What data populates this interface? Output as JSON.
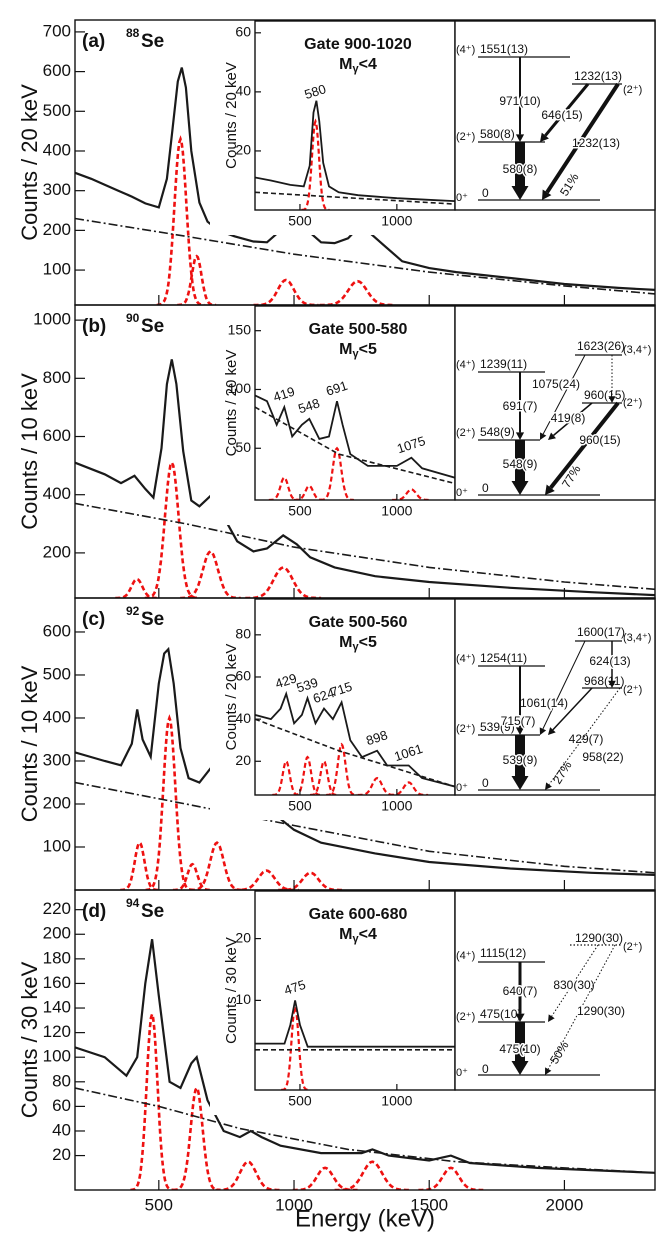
{
  "chart_data": [
    {
      "type": "line",
      "label": "(a)",
      "mass": "88",
      "element": "Se",
      "ylabel": "Counts / 20 keV",
      "xlim": [
        190,
        2335
      ],
      "xticks": [
        500,
        1000,
        1500,
        2000
      ],
      "ylim": [
        12,
        730
      ],
      "yticks": [
        100,
        200,
        300,
        400,
        500,
        600,
        700
      ],
      "series": [
        {
          "style": "solid",
          "color": "#1a1a1a",
          "x": [
            190,
            250,
            300,
            350,
            400,
            450,
            500,
            530,
            550,
            570,
            585,
            600,
            620,
            650,
            680,
            720,
            780,
            850,
            900,
            950,
            975,
            1000,
            1050,
            1100,
            1150,
            1200,
            1235,
            1270,
            1320,
            1400,
            1500,
            1600,
            1800,
            2000,
            2200,
            2335
          ],
          "values": [
            345,
            330,
            315,
            300,
            285,
            268,
            258,
            330,
            450,
            575,
            610,
            560,
            400,
            270,
            222,
            200,
            185,
            172,
            170,
            200,
            232,
            230,
            200,
            170,
            168,
            180,
            205,
            200,
            170,
            122,
            105,
            95,
            80,
            65,
            55,
            50
          ]
        },
        {
          "style": "dash-dot",
          "color": "#1a1a1a",
          "x": [
            190,
            600,
            1000,
            1500,
            2000,
            2335
          ],
          "values": [
            230,
            185,
            140,
            95,
            60,
            40
          ]
        }
      ],
      "peaks": {
        "color": "#ee1111",
        "center": [
          580,
          640,
          970,
          1235
        ],
        "height": [
          430,
          135,
          75,
          72
        ],
        "width": [
          22,
          18,
          30,
          35
        ]
      },
      "inset": {
        "type": "line",
        "title": "Gate 900-1020",
        "multiplicity": [
          "M",
          "γ",
          "<4"
        ],
        "ylabel": "Counts / 20 keV",
        "xlim": [
          268,
          1300
        ],
        "xticks": [
          500,
          1000
        ],
        "ylim": [
          0,
          64
        ],
        "yticks": [
          20,
          40,
          60
        ],
        "series": [
          {
            "style": "solid",
            "color": "#1a1a1a",
            "x": [
              268,
              350,
              450,
              520,
              550,
              570,
              585,
              600,
              620,
              650,
              700,
              800,
              1000,
              1150,
              1300
            ],
            "values": [
              11,
              10,
              8.5,
              8,
              15,
              33,
              37,
              30,
              16,
              8,
              6,
              5,
              4,
              3.5,
              3
            ]
          },
          {
            "style": "dashed",
            "color": "#1a1a1a",
            "x": [
              268,
              1300
            ],
            "values": [
              6,
              2
            ]
          }
        ],
        "peaks": {
          "color": "#ee1111",
          "center": [
            580
          ],
          "height": [
            30
          ],
          "width": [
            18
          ]
        },
        "annotations": [
          "580"
        ]
      },
      "level_scheme": {
        "levels": [
          {
            "spin": "(4⁺)",
            "energy": "1551(13)"
          },
          {
            "spin": "(2⁺)",
            "energy": "580(8)"
          },
          {
            "spin": "0⁺",
            "energy": "0"
          },
          {
            "spin": "(2⁺)",
            "energy": "1232(13)"
          }
        ],
        "transitions": [
          "971(10)",
          "646(15)",
          "580(8)",
          "1232(13)"
        ],
        "branch": "51%"
      }
    },
    {
      "type": "line",
      "label": "(b)",
      "mass": "90",
      "element": "Se",
      "ylabel": "Counts / 10 keV",
      "xlim": [
        190,
        2335
      ],
      "xticks": [
        500,
        1000,
        1500,
        2000
      ],
      "ylim": [
        45,
        1052
      ],
      "yticks": [
        200,
        400,
        600,
        800,
        1000
      ],
      "series": [
        {
          "style": "solid",
          "color": "#1a1a1a",
          "x": [
            190,
            300,
            360,
            410,
            450,
            480,
            510,
            530,
            548,
            565,
            590,
            620,
            650,
            690,
            730,
            790,
            850,
            900,
            960,
            1010,
            1060,
            1150,
            1300,
            1500,
            1800,
            2100,
            2335
          ],
          "values": [
            510,
            470,
            440,
            465,
            420,
            390,
            560,
            780,
            865,
            780,
            550,
            380,
            360,
            395,
            340,
            240,
            205,
            215,
            260,
            230,
            185,
            150,
            120,
            100,
            80,
            65,
            55
          ]
        },
        {
          "style": "dash-dot",
          "color": "#1a1a1a",
          "x": [
            190,
            600,
            1000,
            1500,
            2000,
            2335
          ],
          "values": [
            370,
            300,
            220,
            150,
            100,
            75
          ]
        }
      ],
      "peaks": {
        "color": "#ee1111",
        "center": [
          419,
          548,
          691,
          960
        ],
        "height": [
          110,
          510,
          205,
          150
        ],
        "width": [
          20,
          25,
          28,
          35
        ]
      },
      "inset": {
        "type": "line",
        "title": "Gate 500-580",
        "multiplicity": [
          "M",
          "γ",
          "<5"
        ],
        "ylabel": "Counts / 20 keV",
        "xlim": [
          268,
          1300
        ],
        "xticks": [
          500,
          1000
        ],
        "ylim": [
          6,
          171
        ],
        "yticks": [
          50,
          100,
          150
        ],
        "series": [
          {
            "style": "solid",
            "color": "#1a1a1a",
            "x": [
              268,
              330,
              380,
              419,
              460,
              510,
              548,
              600,
              650,
              691,
              720,
              760,
              850,
              1000,
              1075,
              1130,
              1300
            ],
            "values": [
              95,
              90,
              70,
              85,
              60,
              70,
              75,
              58,
              60,
              90,
              70,
              45,
              35,
              35,
              42,
              33,
              25
            ]
          },
          {
            "style": "dashed",
            "color": "#1a1a1a",
            "x": [
              268,
              700,
              1300
            ],
            "values": [
              85,
              45,
              20
            ]
          }
        ],
        "peaks": {
          "color": "#ee1111",
          "center": [
            419,
            548,
            691,
            1075
          ],
          "height": [
            25,
            18,
            50,
            15
          ],
          "width": [
            20,
            20,
            22,
            25
          ]
        },
        "annotations": [
          "419",
          "548",
          "691",
          "1075"
        ]
      },
      "level_scheme": {
        "levels": [
          {
            "spin": "(4⁺)",
            "energy": "1239(11)"
          },
          {
            "spin": "(2⁺)",
            "energy": "548(9)"
          },
          {
            "spin": "0⁺",
            "energy": "0"
          },
          {
            "spin": "(3,4⁺)",
            "energy": "1623(26)"
          },
          {
            "spin": "(2⁺)",
            "energy": "960(15)"
          }
        ],
        "transitions": [
          "1075(24)",
          "691(7)",
          "419(8)",
          "548(9)",
          "960(15)"
        ],
        "branch": "77%"
      }
    },
    {
      "type": "line",
      "label": "(c)",
      "mass": "92",
      "element": "Se",
      "ylabel": "Counts / 10 keV",
      "xlim": [
        190,
        2335
      ],
      "xticks": [
        500,
        1000,
        1500,
        2000
      ],
      "ylim": [
        0,
        679
      ],
      "yticks": [
        100,
        200,
        300,
        400,
        500,
        600
      ],
      "series": [
        {
          "style": "solid",
          "color": "#1a1a1a",
          "x": [
            190,
            300,
            360,
            400,
            420,
            440,
            470,
            500,
            520,
            535,
            555,
            580,
            610,
            650,
            700,
            715,
            750,
            800,
            850,
            900,
            950,
            1000,
            1100,
            1300,
            1500,
            1800,
            2100,
            2335
          ],
          "values": [
            320,
            300,
            290,
            340,
            420,
            350,
            310,
            480,
            550,
            560,
            480,
            330,
            260,
            250,
            290,
            295,
            240,
            190,
            175,
            175,
            165,
            140,
            110,
            85,
            65,
            50,
            40,
            35
          ]
        },
        {
          "style": "dash-dot",
          "color": "#1a1a1a",
          "x": [
            190,
            600,
            1000,
            1500,
            2000,
            2335
          ],
          "values": [
            250,
            200,
            150,
            90,
            55,
            40
          ]
        }
      ],
      "peaks": {
        "color": "#ee1111",
        "center": [
          429,
          539,
          624,
          715,
          898,
          1061
        ],
        "height": [
          110,
          400,
          60,
          110,
          45,
          40
        ],
        "width": [
          18,
          22,
          18,
          25,
          30,
          30
        ]
      },
      "inset": {
        "type": "line",
        "title": "Gate 500-560",
        "multiplicity": [
          "M",
          "γ",
          "<5"
        ],
        "ylabel": "Counts / 20 keV",
        "xlim": [
          268,
          1300
        ],
        "xticks": [
          500,
          1000
        ],
        "ylim": [
          4,
          97
        ],
        "yticks": [
          20,
          40,
          60,
          80
        ],
        "series": [
          {
            "style": "solid",
            "color": "#1a1a1a",
            "x": [
              268,
              350,
              400,
              429,
              470,
              510,
              539,
              580,
              624,
              670,
              715,
              760,
              820,
              898,
              950,
              1061,
              1130,
              1300
            ],
            "values": [
              42,
              40,
              45,
              52,
              38,
              42,
              50,
              38,
              45,
              40,
              48,
              30,
              22,
              25,
              18,
              18,
              12,
              8
            ]
          },
          {
            "style": "dashed",
            "color": "#1a1a1a",
            "x": [
              268,
              700,
              1300
            ],
            "values": [
              40,
              25,
              8
            ]
          }
        ],
        "peaks": {
          "color": "#ee1111",
          "center": [
            429,
            539,
            624,
            715,
            898,
            1061
          ],
          "height": [
            20,
            22,
            20,
            28,
            12,
            10
          ],
          "width": [
            18,
            18,
            18,
            20,
            25,
            25
          ]
        },
        "annotations": [
          "429",
          "539",
          "624",
          "715",
          "898",
          "1061"
        ]
      },
      "level_scheme": {
        "levels": [
          {
            "spin": "(4⁺)",
            "energy": "1254(11)"
          },
          {
            "spin": "(2⁺)",
            "energy": "539(9)"
          },
          {
            "spin": "0⁺",
            "energy": "0"
          },
          {
            "spin": "(3,4⁺)",
            "energy": "1600(17)"
          },
          {
            "spin": "(2⁺)",
            "energy": "968(11)"
          }
        ],
        "transitions": [
          "624(13)",
          "1061(14)",
          "715(7)",
          "429(7)",
          "539(9)",
          "958(22)"
        ],
        "branch": "27%"
      }
    },
    {
      "type": "line",
      "label": "(d)",
      "mass": "94",
      "element": "Se",
      "ylabel": "Counts / 30 keV",
      "xlabel": "Energy (keV)",
      "xlim": [
        190,
        2335
      ],
      "xticks": [
        500,
        1000,
        1500,
        2000
      ],
      "ylim": [
        -8,
        236
      ],
      "yticks": [
        20,
        40,
        60,
        80,
        100,
        120,
        140,
        160,
        180,
        200,
        220
      ],
      "series": [
        {
          "style": "solid",
          "color": "#1a1a1a",
          "x": [
            190,
            300,
            380,
            420,
            450,
            475,
            500,
            540,
            580,
            620,
            640,
            680,
            740,
            800,
            840,
            880,
            950,
            1100,
            1250,
            1290,
            1350,
            1500,
            1580,
            1650,
            1900,
            2335
          ],
          "values": [
            108,
            100,
            85,
            100,
            160,
            196,
            150,
            80,
            75,
            95,
            100,
            65,
            40,
            35,
            40,
            35,
            28,
            22,
            22,
            25,
            20,
            16,
            20,
            14,
            10,
            6
          ]
        },
        {
          "style": "dash-dot",
          "color": "#1a1a1a",
          "x": [
            190,
            500,
            800,
            1200,
            1600,
            2000,
            2335
          ],
          "values": [
            75,
            60,
            42,
            25,
            15,
            10,
            6
          ]
        }
      ],
      "peaks": {
        "color": "#ee1111",
        "center": [
          475,
          640,
          830,
          1115,
          1290,
          1580
        ],
        "height": [
          135,
          75,
          15,
          10,
          15,
          10
        ],
        "width": [
          20,
          22,
          30,
          30,
          35,
          30
        ]
      },
      "inset": {
        "type": "line",
        "title": "Gate 600-680",
        "multiplicity": [
          "M",
          "γ",
          "<4"
        ],
        "ylabel": "Counts / 30 keV",
        "xlim": [
          268,
          1300
        ],
        "xticks": [
          500,
          1000
        ],
        "ylim": [
          -4.5,
          27.7
        ],
        "yticks": [
          10,
          20
        ],
        "series": [
          {
            "style": "solid",
            "color": "#1a1a1a",
            "x": [
              268,
              420,
              450,
              475,
              500,
              540,
              1300
            ],
            "values": [
              3,
              3,
              6,
              10,
              6,
              2.5,
              2.5
            ]
          },
          {
            "style": "dashed",
            "color": "#1a1a1a",
            "x": [
              268,
              1300
            ],
            "values": [
              2,
              2
            ]
          }
        ],
        "peaks": {
          "color": "#ee1111",
          "center": [
            475
          ],
          "height": [
            9
          ],
          "width": [
            18
          ]
        },
        "annotations": [
          "475"
        ]
      },
      "level_scheme": {
        "levels": [
          {
            "spin": "(4⁺)",
            "energy": "1115(12)"
          },
          {
            "spin": "(2⁺)",
            "energy": "475(10)"
          },
          {
            "spin": "0⁺",
            "energy": "0"
          },
          {
            "spin": "(2⁺)",
            "energy": "1290(30)"
          }
        ],
        "transitions": [
          "830(30)",
          "640(7)",
          "1290(30)",
          "475(10)"
        ],
        "branch": "50%"
      }
    }
  ]
}
